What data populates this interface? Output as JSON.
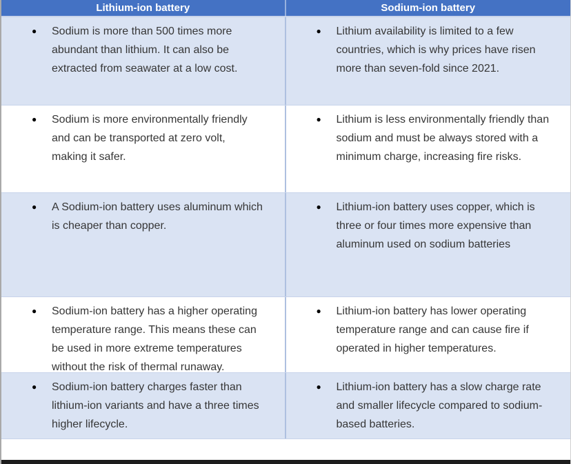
{
  "comparison_table": {
    "columns": [
      {
        "label": "Lithium-ion battery"
      },
      {
        "label": "Sodium-ion battery"
      }
    ],
    "bullet_glyph": "●",
    "rows": [
      {
        "left": "Sodium is more than 500 times more abundant than lithium. It can also be extracted from seawater at a low cost.",
        "right": "Lithium availability is limited to a few countries, which is why prices have risen more than seven-fold since 2021."
      },
      {
        "left": "Sodium is more environmentally friendly and can be transported at zero volt, making it safer.",
        "right": "Lithium is less environmentally friendly than sodium and must be always stored with a minimum charge, increasing fire risks."
      },
      {
        "left": "A Sodium-ion battery uses aluminum which is cheaper than copper.",
        "right": "Lithium-ion battery uses copper, which is three or four times more expensive than aluminum used on sodium batteries"
      },
      {
        "left": "Sodium-ion battery has a higher operating temperature range. This means these can be used in more extreme temperatures without the risk of thermal runaway.",
        "right": "Lithium-ion battery has lower operating temperature range and can cause fire if operated in higher temperatures."
      },
      {
        "left": "Sodium-ion battery charges faster than lithium-ion variants and have a three times higher lifecycle.",
        "right": "Lithium-ion battery has a slow charge rate and smaller lifecycle compared to sodium-based batteries."
      }
    ]
  },
  "colors": {
    "header_background": "#4472C4",
    "header_text": "#FFFFFF",
    "row_shaded_background": "#DAE3F3",
    "row_plain_background": "#FFFFFF",
    "body_text": "#363636",
    "column_divider": "#AEC0E0",
    "row_divider": "#C7D3EA",
    "bullet": "#000000",
    "bottom_bar": "#1C1C1C"
  }
}
